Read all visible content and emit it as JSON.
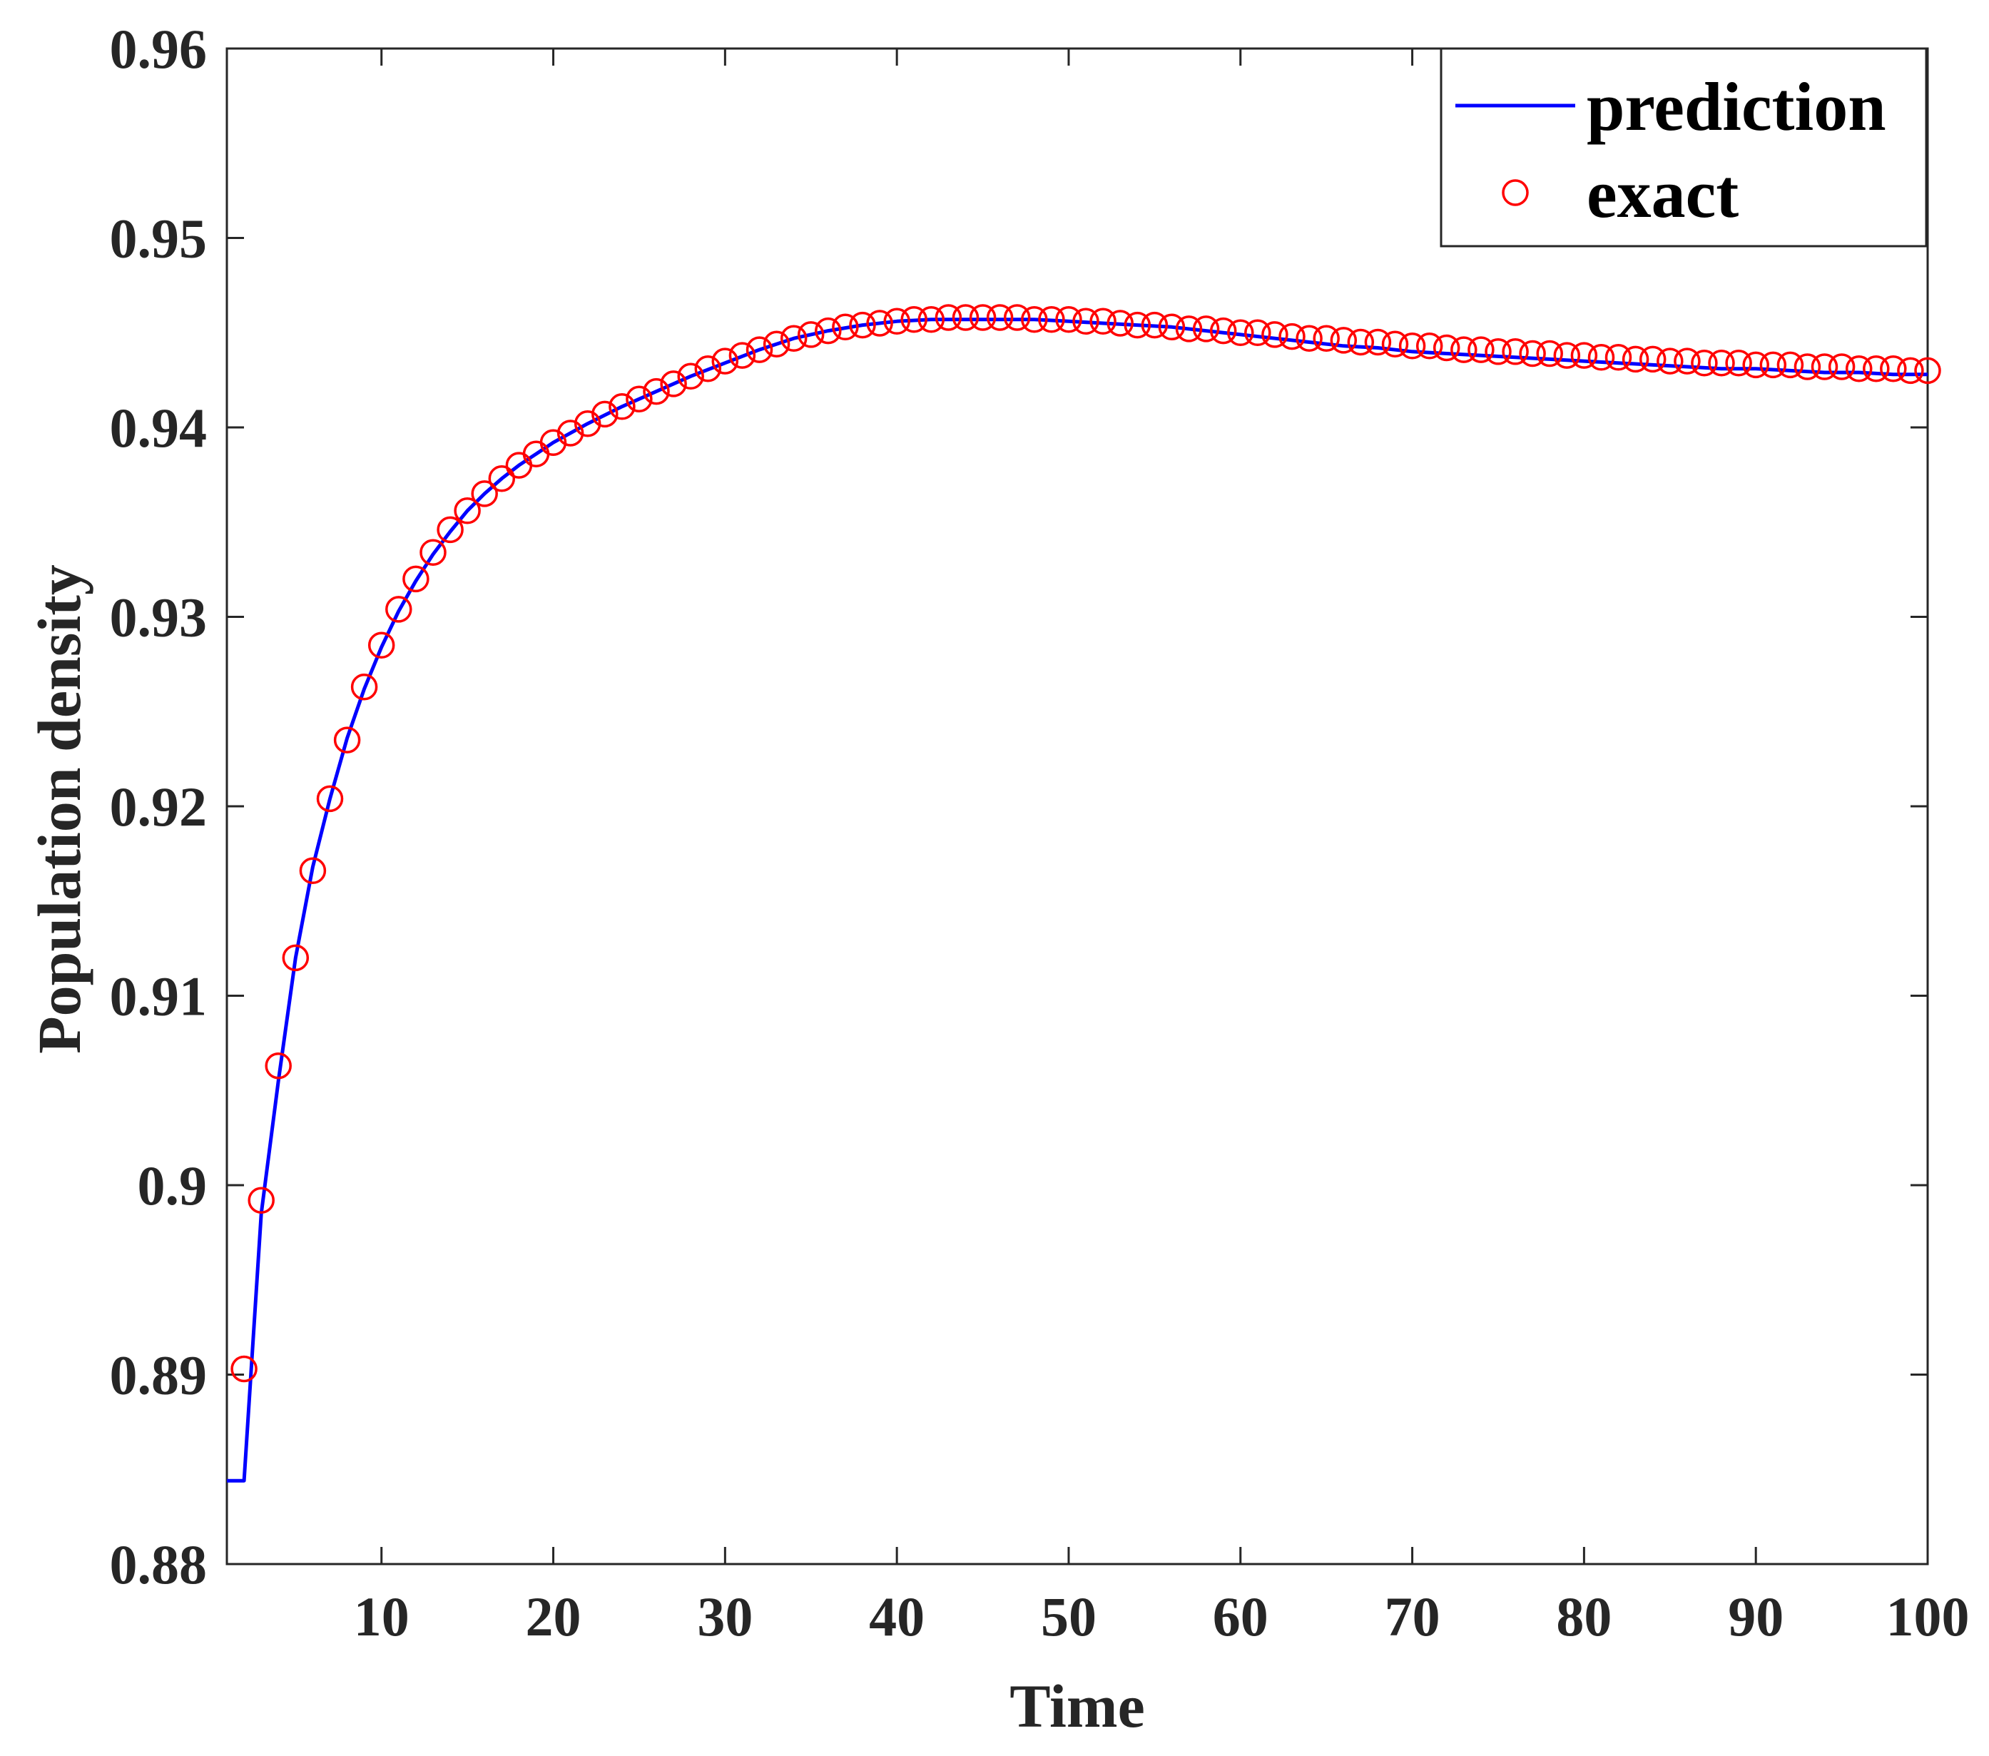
{
  "chart_data": {
    "type": "line",
    "xlabel": "Time",
    "ylabel": "Population density",
    "xlim": [
      1,
      100
    ],
    "ylim": [
      0.88,
      0.96
    ],
    "xticks": [
      10,
      20,
      30,
      40,
      50,
      60,
      70,
      80,
      90,
      100
    ],
    "xtick_labels": [
      "10",
      "20",
      "30",
      "40",
      "50",
      "60",
      "70",
      "80",
      "90",
      "100"
    ],
    "yticks": [
      0.88,
      0.89,
      0.9,
      0.91,
      0.92,
      0.93,
      0.94,
      0.95,
      0.96
    ],
    "ytick_labels": [
      "0.88",
      "0.89",
      "0.9",
      "0.91",
      "0.92",
      "0.93",
      "0.94",
      "0.95",
      "0.96"
    ],
    "grid": false,
    "legend_position": "top-right",
    "series": [
      {
        "name": "prediction",
        "style": "line",
        "color": "#0000ff",
        "x": [
          1,
          2,
          3,
          4,
          5,
          6,
          7,
          8,
          9,
          10,
          11,
          12,
          13,
          14,
          15,
          16,
          17,
          18,
          19,
          20,
          22,
          24,
          26,
          28,
          30,
          32,
          34,
          36,
          38,
          40,
          42,
          44,
          46,
          48,
          50,
          52,
          54,
          56,
          58,
          60,
          62,
          64,
          66,
          68,
          70,
          72,
          74,
          76,
          78,
          80,
          82,
          84,
          86,
          88,
          90,
          92,
          94,
          96,
          98,
          100
        ],
        "y": [
          0.8844,
          0.8844,
          0.8985,
          0.9055,
          0.912,
          0.9168,
          0.9204,
          0.9236,
          0.9262,
          0.9284,
          0.9303,
          0.9319,
          0.9333,
          0.9345,
          0.9356,
          0.9365,
          0.9373,
          0.938,
          0.9386,
          0.9392,
          0.9402,
          0.9411,
          0.9419,
          0.9427,
          0.9434,
          0.9441,
          0.9447,
          0.9451,
          0.9454,
          0.9456,
          0.9457,
          0.9457,
          0.9457,
          0.9457,
          0.9456,
          0.9455,
          0.9454,
          0.9453,
          0.9451,
          0.9449,
          0.9447,
          0.9445,
          0.9443,
          0.9442,
          0.944,
          0.9439,
          0.9438,
          0.9437,
          0.9436,
          0.9435,
          0.9434,
          0.9433,
          0.9432,
          0.9431,
          0.9431,
          0.943,
          0.9429,
          0.9429,
          0.9428,
          0.9428
        ]
      },
      {
        "name": "exact",
        "style": "marker",
        "marker": "circle-open",
        "color": "#ff0000",
        "x": [
          2,
          3,
          4,
          5,
          6,
          7,
          8,
          9,
          10,
          11,
          12,
          13,
          14,
          15,
          16,
          17,
          18,
          19,
          20,
          21,
          22,
          23,
          24,
          25,
          26,
          27,
          28,
          29,
          30,
          31,
          32,
          33,
          34,
          35,
          36,
          37,
          38,
          39,
          40,
          41,
          42,
          43,
          44,
          45,
          46,
          47,
          48,
          49,
          50,
          51,
          52,
          53,
          54,
          55,
          56,
          57,
          58,
          59,
          60,
          61,
          62,
          63,
          64,
          65,
          66,
          67,
          68,
          69,
          70,
          71,
          72,
          73,
          74,
          75,
          76,
          77,
          78,
          79,
          80,
          81,
          82,
          83,
          84,
          85,
          86,
          87,
          88,
          89,
          90,
          91,
          92,
          93,
          94,
          95,
          96,
          97,
          98,
          99,
          100
        ],
        "y": [
          0.8903,
          0.8992,
          0.9063,
          0.912,
          0.9166,
          0.9204,
          0.9235,
          0.9263,
          0.9285,
          0.9304,
          0.932,
          0.9334,
          0.9346,
          0.9356,
          0.9365,
          0.9373,
          0.938,
          0.9386,
          0.9392,
          0.9397,
          0.9402,
          0.9407,
          0.9411,
          0.9415,
          0.9419,
          0.9423,
          0.9427,
          0.9431,
          0.9435,
          0.9438,
          0.9441,
          0.9444,
          0.9447,
          0.9449,
          0.9451,
          0.9453,
          0.9454,
          0.9455,
          0.9456,
          0.9457,
          0.9457,
          0.9458,
          0.9458,
          0.9458,
          0.9458,
          0.9458,
          0.9457,
          0.9457,
          0.9457,
          0.9456,
          0.9456,
          0.9455,
          0.9454,
          0.9454,
          0.9453,
          0.9452,
          0.9452,
          0.9451,
          0.945,
          0.945,
          0.9449,
          0.9448,
          0.9447,
          0.9447,
          0.9446,
          0.9445,
          0.9445,
          0.9444,
          0.9443,
          0.9443,
          0.9442,
          0.9441,
          0.9441,
          0.944,
          0.944,
          0.9439,
          0.9439,
          0.9438,
          0.9438,
          0.9437,
          0.9437,
          0.9436,
          0.9436,
          0.9435,
          0.9435,
          0.9434,
          0.9434,
          0.9434,
          0.9433,
          0.9433,
          0.9433,
          0.9432,
          0.9432,
          0.9432,
          0.9431,
          0.9431,
          0.9431,
          0.943,
          0.943
        ]
      }
    ]
  }
}
